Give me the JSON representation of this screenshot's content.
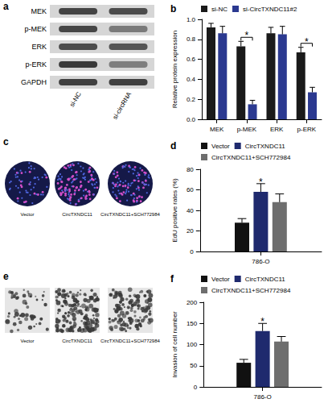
{
  "figure": {
    "panel_letters": [
      "a",
      "b",
      "c",
      "d",
      "e",
      "f"
    ],
    "blot": {
      "rows": [
        "MEK",
        "p-MEK",
        "ERK",
        "p-ERK",
        "GAPDH"
      ],
      "lanes": [
        "si-NC",
        "si-circRNA"
      ]
    },
    "edu_images": [
      "Vector",
      "CircTXNDC11",
      "CircTXNDC11+SCH772984"
    ],
    "transwell_images": [
      "Vector",
      "CircTXNDC11",
      "CircTXNDC11+SCH772984"
    ]
  },
  "chart_data": [
    {
      "type": "bar",
      "ylabel": "Relative protein expression",
      "categories": [
        "MEK",
        "p-MEK",
        "ERK",
        "p-ERK"
      ],
      "series": [
        {
          "name": "si-NC",
          "color": "#1a1a1a",
          "values": [
            0.92,
            0.73,
            0.86,
            0.67
          ],
          "errors": [
            0.04,
            0.05,
            0.06,
            0.05
          ]
        },
        {
          "name": "si-CircTXNDC11#2",
          "color": "#2b3990",
          "values": [
            0.86,
            0.15,
            0.85,
            0.27
          ],
          "errors": [
            0.07,
            0.04,
            0.08,
            0.05
          ]
        }
      ],
      "ylim": [
        0,
        1
      ],
      "yticks": [
        {
          "value": 0,
          "label": "0.0"
        },
        {
          "value": 0.2,
          "label": "0.2"
        },
        {
          "value": 0.4,
          "label": "0.4"
        },
        {
          "value": 0.6,
          "label": "0.6"
        },
        {
          "value": 0.8,
          "label": "0.8"
        },
        {
          "value": 1,
          "label": "1.0"
        }
      ],
      "grid": false,
      "legend": "top",
      "annotations": [
        {
          "category": "p-MEK",
          "text": "*"
        },
        {
          "category": "p-ERK",
          "text": "*"
        }
      ]
    },
    {
      "type": "bar",
      "ylabel": "EdU positive rates (%)",
      "categories": [
        "786-O"
      ],
      "series": [
        {
          "name": "Vector",
          "color": "#111111",
          "values": [
            28
          ],
          "errors": [
            4
          ]
        },
        {
          "name": "CircTXNDC11",
          "color": "#1f2a6e",
          "values": [
            58
          ],
          "errors": [
            8
          ]
        },
        {
          "name": "CircTXNDC11+SCH772984",
          "color": "#6e6e6e",
          "values": [
            48
          ],
          "errors": [
            8
          ]
        }
      ],
      "ylim": [
        0,
        80
      ],
      "yticks": [
        0,
        20,
        40,
        60,
        80
      ],
      "grid": false,
      "legend": "top",
      "annotations": [
        {
          "category": "786-O",
          "series": "CircTXNDC11",
          "text": "*"
        }
      ]
    },
    {
      "type": "bar",
      "ylabel": "Invasion of cell number",
      "categories": [
        "786-O"
      ],
      "series": [
        {
          "name": "Vector",
          "color": "#111111",
          "values": [
            57
          ],
          "errors": [
            8
          ]
        },
        {
          "name": "CircTXNDC11",
          "color": "#1f2a6e",
          "values": [
            132
          ],
          "errors": [
            18
          ]
        },
        {
          "name": "CircTXNDC11+SCH772984",
          "color": "#6e6e6e",
          "values": [
            107
          ],
          "errors": [
            12
          ]
        }
      ],
      "ylim": [
        0,
        200
      ],
      "yticks": [
        0,
        50,
        100,
        150,
        200
      ],
      "grid": false,
      "legend": "top",
      "annotations": [
        {
          "category": "786-O",
          "series": "CircTXNDC11",
          "text": "*"
        }
      ]
    }
  ]
}
